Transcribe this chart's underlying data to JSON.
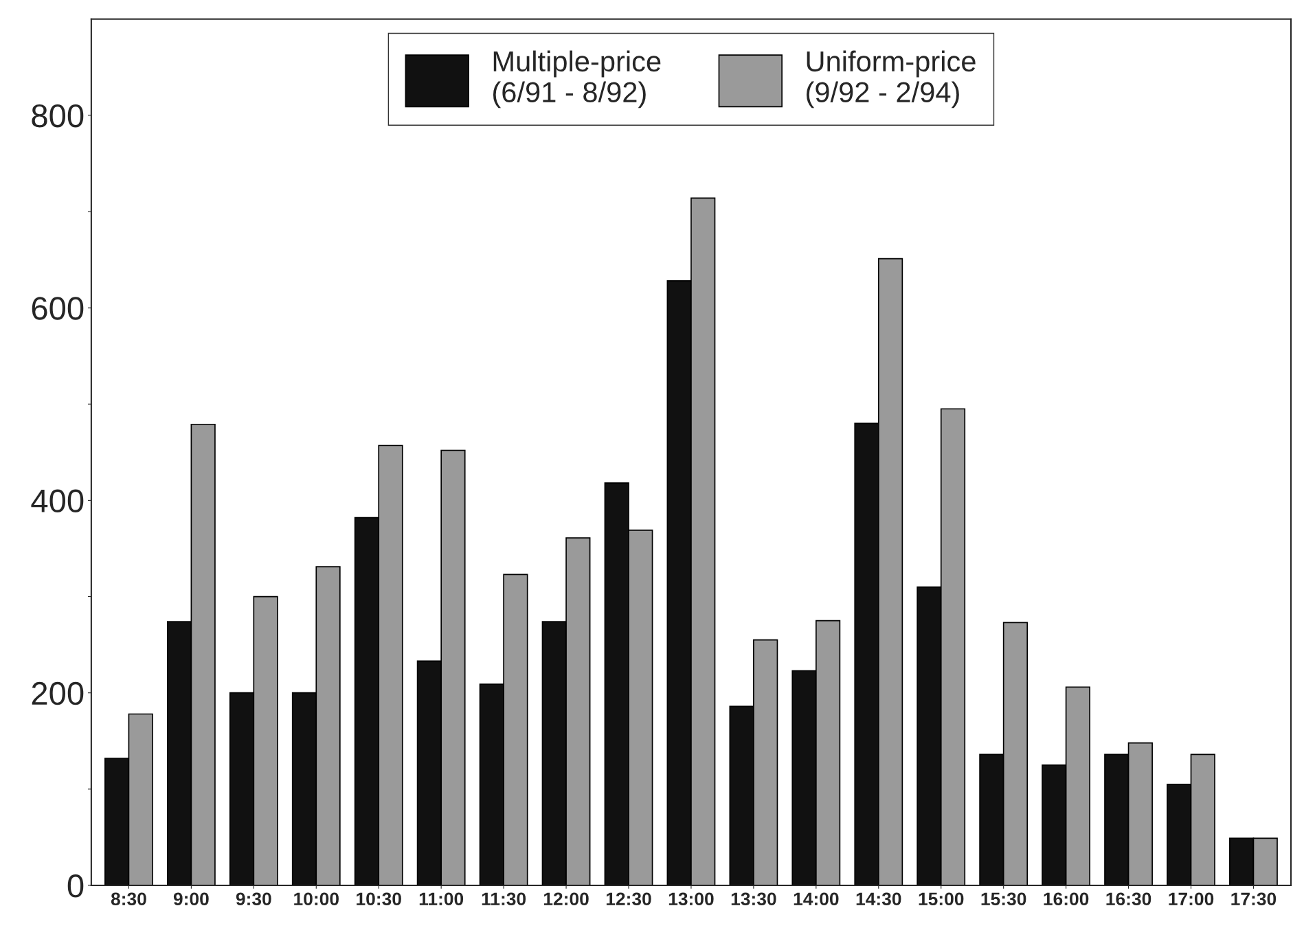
{
  "chart_data": {
    "type": "bar",
    "categories": [
      "8:30",
      "9:00",
      "9:30",
      "10:00",
      "10:30",
      "11:00",
      "11:30",
      "12:00",
      "12:30",
      "13:00",
      "13:30",
      "14:00",
      "14:30",
      "15:00",
      "15:30",
      "16:00",
      "16:30",
      "17:00",
      "17:30"
    ],
    "series": [
      {
        "name": "Multiple-price\n(6/91 - 8/92)",
        "color": "#111111",
        "values": [
          132,
          274,
          200,
          200,
          382,
          233,
          209,
          274,
          418,
          628,
          186,
          223,
          480,
          310,
          136,
          125,
          136,
          105,
          49
        ]
      },
      {
        "name": "Uniform-price\n(9/92 - 2/94)",
        "color": "#9a9a9a",
        "values": [
          178,
          479,
          300,
          331,
          457,
          452,
          323,
          361,
          369,
          714,
          255,
          275,
          651,
          495,
          273,
          206,
          148,
          136,
          49
        ]
      }
    ],
    "ylim": [
      0,
      900
    ],
    "yticks": [
      0,
      {
        "value": 100,
        "label": null
      },
      200,
      {
        "value": 300,
        "label": null
      },
      400,
      {
        "value": 500,
        "label": null
      },
      600,
      {
        "value": 700,
        "label": null
      },
      800
    ],
    "grid": false,
    "legend": "top"
  }
}
